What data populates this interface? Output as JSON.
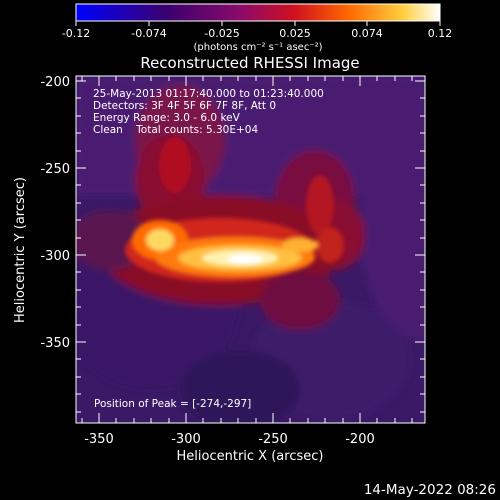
{
  "colorbar": {
    "tick_labels": [
      "-0.12",
      "-0.074",
      "-0.025",
      "0.025",
      "0.074",
      "0.12"
    ],
    "unit_label": "(photons cm⁻² s⁻¹ asec⁻²)"
  },
  "plot": {
    "title": "Reconstructed RHESSI Image",
    "info_lines": [
      "25-May-2013 01:17:40.000 to 01:23:40.000",
      "Detectors: 3F 4F 5F 6F 7F 8F, Att 0",
      "Energy Range: 3.0 - 6.0 keV",
      "Clean    Total counts: 5.30E+04"
    ],
    "peak_label": "Position of Peak = [-274,-297]",
    "xlabel": "Heliocentric X (arcsec)",
    "ylabel": "Heliocentric Y (arcsec)",
    "x_ticks": [
      "-350",
      "-300",
      "-250",
      "-200"
    ],
    "y_ticks": [
      "-200",
      "-250",
      "-300",
      "-350"
    ],
    "xlim": [
      -365,
      -165
    ],
    "ylim": [
      -390,
      -190
    ],
    "peak": [
      -274,
      -297
    ]
  },
  "footer": {
    "timestamp": "14-May-2022 08:26"
  },
  "colors": {
    "background": "#000000",
    "text": "#ffffff",
    "colormap": [
      "#0000ff",
      "#3a006e",
      "#552a7a",
      "#a01060",
      "#e0301a",
      "#ff8a00",
      "#ffe070",
      "#ffffff"
    ]
  }
}
